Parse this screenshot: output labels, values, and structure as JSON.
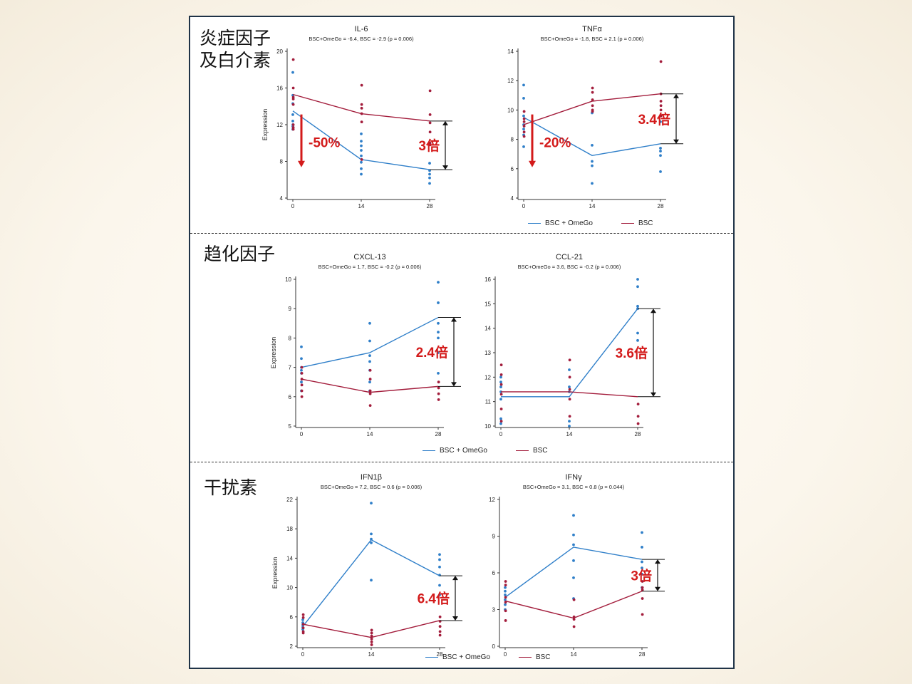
{
  "colors": {
    "blue": "#2f7fc9",
    "red": "#a31d3c",
    "callout": "#d31a1a"
  },
  "sections": [
    {
      "title_line1": "炎症因子",
      "title_line2": "及白介素"
    },
    {
      "title_line1": "趋化因子"
    },
    {
      "title_line1": "干扰素"
    }
  ],
  "legend": {
    "series_a": "BSC + OmeGo",
    "series_b": "BSC"
  },
  "chart_data": [
    {
      "type": "line",
      "title": "IL-6",
      "subtitle": "BSC+OmeGo = -6.4,  BSC = -2.9 (p = 0.006)",
      "ylabel": "Expression",
      "ylim": [
        4,
        20
      ],
      "yticks": [
        4,
        8,
        12,
        16,
        20
      ],
      "x": [
        0,
        14,
        28
      ],
      "series": [
        {
          "name": "BSC + OmeGo",
          "values": [
            13.5,
            8.2,
            7.1
          ],
          "points": [
            [
              0,
              17.7
            ],
            [
              0,
              15.2
            ],
            [
              0,
              14.3
            ],
            [
              0,
              13.1
            ],
            [
              0,
              12.4
            ],
            [
              0,
              12.0
            ],
            [
              0,
              11.8
            ],
            [
              0,
              11.5
            ],
            [
              14,
              11.0
            ],
            [
              14,
              10.2
            ],
            [
              14,
              9.7
            ],
            [
              14,
              9.2
            ],
            [
              14,
              8.6
            ],
            [
              14,
              7.9
            ],
            [
              14,
              7.2
            ],
            [
              14,
              6.6
            ],
            [
              28,
              7.8
            ],
            [
              28,
              7.0
            ],
            [
              28,
              6.6
            ],
            [
              28,
              6.2
            ],
            [
              28,
              5.6
            ]
          ]
        },
        {
          "name": "BSC",
          "values": [
            15.3,
            13.2,
            12.4
          ],
          "points": [
            [
              0,
              19.1
            ],
            [
              0,
              16.0
            ],
            [
              0,
              15.0
            ],
            [
              0,
              14.8
            ],
            [
              0,
              14.2
            ],
            [
              0,
              12.0
            ],
            [
              0,
              11.7
            ],
            [
              0,
              11.5
            ],
            [
              14,
              16.3
            ],
            [
              14,
              14.2
            ],
            [
              14,
              13.8
            ],
            [
              14,
              13.2
            ],
            [
              14,
              12.3
            ],
            [
              14,
              8.2
            ],
            [
              28,
              15.7
            ],
            [
              28,
              13.1
            ],
            [
              28,
              12.2
            ],
            [
              28,
              11.2
            ],
            [
              28,
              10.0
            ],
            [
              28,
              9.8
            ]
          ]
        }
      ],
      "callouts": [
        {
          "text": "-50%",
          "kind": "down"
        },
        {
          "text": "3倍",
          "kind": "range",
          "from": 12.4,
          "to": 7.1
        }
      ]
    },
    {
      "type": "line",
      "title": "TNFα",
      "subtitle": "BSC+OmeGo = -1.8,  BSC = 2.1 (p = 0.006)",
      "ylabel": "",
      "ylim": [
        4,
        14
      ],
      "yticks": [
        4,
        6,
        8,
        10,
        12,
        14
      ],
      "x": [
        0,
        14,
        28
      ],
      "series": [
        {
          "name": "BSC + OmeGo",
          "values": [
            9.5,
            6.9,
            7.7
          ],
          "points": [
            [
              0,
              11.7
            ],
            [
              0,
              10.8
            ],
            [
              0,
              9.6
            ],
            [
              0,
              9.0
            ],
            [
              0,
              8.7
            ],
            [
              0,
              8.3
            ],
            [
              0,
              7.5
            ],
            [
              14,
              7.6
            ],
            [
              14,
              6.5
            ],
            [
              14,
              6.2
            ],
            [
              14,
              5.0
            ],
            [
              14,
              9.8
            ],
            [
              28,
              9.2
            ],
            [
              28,
              7.4
            ],
            [
              28,
              7.2
            ],
            [
              28,
              6.9
            ],
            [
              28,
              5.8
            ]
          ]
        },
        {
          "name": "BSC",
          "values": [
            9.0,
            10.6,
            11.1
          ],
          "points": [
            [
              0,
              9.9
            ],
            [
              0,
              9.4
            ],
            [
              0,
              9.2
            ],
            [
              0,
              8.9
            ],
            [
              0,
              8.5
            ],
            [
              0,
              8.2
            ],
            [
              14,
              11.5
            ],
            [
              14,
              11.2
            ],
            [
              14,
              10.7
            ],
            [
              14,
              10.3
            ],
            [
              14,
              10.0
            ],
            [
              14,
              9.9
            ],
            [
              28,
              13.3
            ],
            [
              28,
              11.1
            ],
            [
              28,
              10.6
            ],
            [
              28,
              10.3
            ],
            [
              28,
              10.0
            ],
            [
              28,
              9.6
            ]
          ]
        }
      ],
      "callouts": [
        {
          "text": "-20%",
          "kind": "down"
        },
        {
          "text": "3.4倍",
          "kind": "range",
          "from": 11.1,
          "to": 7.7
        }
      ]
    },
    {
      "type": "line",
      "title": "CXCL-13",
      "subtitle": "BSC+OmeGo = 1.7,  BSC = -0.2 (p = 0.006)",
      "ylabel": "Expression",
      "ylim": [
        5,
        10
      ],
      "yticks": [
        5,
        6,
        7,
        8,
        9,
        10
      ],
      "x": [
        0,
        14,
        28
      ],
      "series": [
        {
          "name": "BSC + OmeGo",
          "values": [
            7.0,
            7.5,
            8.7
          ],
          "points": [
            [
              0,
              7.7
            ],
            [
              0,
              7.3
            ],
            [
              0,
              7.0
            ],
            [
              0,
              6.9
            ],
            [
              0,
              6.8
            ],
            [
              0,
              6.5
            ],
            [
              0,
              6.2
            ],
            [
              14,
              8.5
            ],
            [
              14,
              7.9
            ],
            [
              14,
              7.4
            ],
            [
              14,
              7.2
            ],
            [
              14,
              6.9
            ],
            [
              14,
              6.5
            ],
            [
              14,
              6.2
            ],
            [
              28,
              9.9
            ],
            [
              28,
              9.2
            ],
            [
              28,
              8.5
            ],
            [
              28,
              8.2
            ],
            [
              28,
              8.0
            ],
            [
              28,
              7.5
            ],
            [
              28,
              6.8
            ]
          ]
        },
        {
          "name": "BSC",
          "values": [
            6.6,
            6.15,
            6.35
          ],
          "points": [
            [
              0,
              7.0
            ],
            [
              0,
              6.8
            ],
            [
              0,
              6.6
            ],
            [
              0,
              6.4
            ],
            [
              0,
              6.2
            ],
            [
              0,
              6.0
            ],
            [
              14,
              6.9
            ],
            [
              14,
              6.6
            ],
            [
              14,
              6.2
            ],
            [
              14,
              6.1
            ],
            [
              14,
              5.7
            ],
            [
              28,
              6.5
            ],
            [
              28,
              6.3
            ],
            [
              28,
              6.1
            ],
            [
              28,
              5.9
            ]
          ]
        }
      ],
      "callouts": [
        {
          "text": "2.4倍",
          "kind": "range",
          "from": 8.7,
          "to": 6.35
        }
      ]
    },
    {
      "type": "line",
      "title": "CCL-21",
      "subtitle": "BSC+OmeGo = 3.6,  BSC = -0.2 (p = 0.006)",
      "ylabel": "",
      "ylim": [
        10,
        16
      ],
      "yticks": [
        10,
        11,
        12,
        13,
        14,
        15,
        16
      ],
      "x": [
        0,
        14,
        28
      ],
      "series": [
        {
          "name": "BSC + OmeGo",
          "values": [
            11.2,
            11.2,
            14.8
          ],
          "points": [
            [
              0,
              12.0
            ],
            [
              0,
              11.8
            ],
            [
              0,
              11.6
            ],
            [
              0,
              11.4
            ],
            [
              0,
              11.1
            ],
            [
              0,
              10.3
            ],
            [
              0,
              10.1
            ],
            [
              14,
              12.3
            ],
            [
              14,
              11.6
            ],
            [
              14,
              11.4
            ],
            [
              14,
              10.2
            ],
            [
              14,
              10.0
            ],
            [
              28,
              16.0
            ],
            [
              28,
              15.7
            ],
            [
              28,
              14.9
            ],
            [
              28,
              14.8
            ],
            [
              28,
              13.8
            ],
            [
              28,
              13.5
            ]
          ]
        },
        {
          "name": "BSC",
          "values": [
            11.4,
            11.4,
            11.2
          ],
          "points": [
            [
              0,
              12.5
            ],
            [
              0,
              12.1
            ],
            [
              0,
              11.7
            ],
            [
              0,
              11.3
            ],
            [
              0,
              10.7
            ],
            [
              0,
              10.2
            ],
            [
              14,
              12.7
            ],
            [
              14,
              12.0
            ],
            [
              14,
              11.5
            ],
            [
              14,
              11.1
            ],
            [
              14,
              10.4
            ],
            [
              28,
              10.9
            ],
            [
              28,
              10.4
            ],
            [
              28,
              10.1
            ]
          ]
        }
      ],
      "callouts": [
        {
          "text": "3.6倍",
          "kind": "range",
          "from": 14.8,
          "to": 11.2
        }
      ]
    },
    {
      "type": "line",
      "title": "IFN1β",
      "subtitle": "BSC+OmeGo = 7.2,  BSC = 0.6 (p = 0.006)",
      "ylabel": "Expression",
      "ylim": [
        2,
        22
      ],
      "yticks": [
        2,
        6,
        10,
        14,
        18,
        22
      ],
      "x": [
        0,
        14,
        28
      ],
      "series": [
        {
          "name": "BSC + OmeGo",
          "values": [
            4.7,
            16.5,
            11.6
          ],
          "points": [
            [
              0,
              5.6
            ],
            [
              0,
              5.2
            ],
            [
              0,
              4.9
            ],
            [
              0,
              4.6
            ],
            [
              0,
              4.3
            ],
            [
              14,
              21.5
            ],
            [
              14,
              17.3
            ],
            [
              14,
              16.6
            ],
            [
              14,
              16.1
            ],
            [
              14,
              11.0
            ],
            [
              28,
              14.5
            ],
            [
              28,
              13.8
            ],
            [
              28,
              12.8
            ],
            [
              28,
              11.7
            ],
            [
              28,
              10.3
            ],
            [
              28,
              9.0
            ]
          ]
        },
        {
          "name": "BSC",
          "values": [
            5.0,
            3.2,
            5.5
          ],
          "points": [
            [
              0,
              6.3
            ],
            [
              0,
              5.9
            ],
            [
              0,
              5.0
            ],
            [
              0,
              4.5
            ],
            [
              0,
              4.0
            ],
            [
              0,
              3.8
            ],
            [
              14,
              4.2
            ],
            [
              14,
              3.8
            ],
            [
              14,
              3.4
            ],
            [
              14,
              3.0
            ],
            [
              14,
              2.6
            ],
            [
              14,
              2.2
            ],
            [
              28,
              6.0
            ],
            [
              28,
              5.4
            ],
            [
              28,
              4.7
            ],
            [
              28,
              4.0
            ],
            [
              28,
              3.5
            ]
          ]
        }
      ],
      "callouts": [
        {
          "text": "6.4倍",
          "kind": "range",
          "from": 11.6,
          "to": 5.5
        }
      ]
    },
    {
      "type": "line",
      "title": "IFNγ",
      "subtitle": "BSC+OmeGo = 3.1,  BSC = 0.8 (p = 0.044)",
      "ylabel": "",
      "ylim": [
        0,
        12
      ],
      "yticks": [
        0,
        3,
        6,
        9,
        12
      ],
      "x": [
        0,
        14,
        28
      ],
      "series": [
        {
          "name": "BSC + OmeGo",
          "values": [
            4.0,
            8.1,
            7.1
          ],
          "points": [
            [
              0,
              4.8
            ],
            [
              0,
              4.5
            ],
            [
              0,
              4.2
            ],
            [
              0,
              3.8
            ],
            [
              0,
              3.4
            ],
            [
              0,
              3.0
            ],
            [
              14,
              10.7
            ],
            [
              14,
              9.1
            ],
            [
              14,
              8.3
            ],
            [
              14,
              7.0
            ],
            [
              14,
              5.6
            ],
            [
              14,
              3.9
            ],
            [
              28,
              9.3
            ],
            [
              28,
              8.1
            ],
            [
              28,
              6.9
            ],
            [
              28,
              6.4
            ],
            [
              28,
              5.9
            ],
            [
              28,
              4.8
            ]
          ]
        },
        {
          "name": "BSC",
          "values": [
            3.7,
            2.3,
            4.5
          ],
          "points": [
            [
              0,
              5.3
            ],
            [
              0,
              5.0
            ],
            [
              0,
              4.0
            ],
            [
              0,
              3.6
            ],
            [
              0,
              2.9
            ],
            [
              0,
              2.1
            ],
            [
              14,
              3.8
            ],
            [
              14,
              2.4
            ],
            [
              14,
              2.2
            ],
            [
              14,
              1.6
            ],
            [
              28,
              5.3
            ],
            [
              28,
              4.8
            ],
            [
              28,
              4.6
            ],
            [
              28,
              3.9
            ],
            [
              28,
              2.6
            ]
          ]
        }
      ],
      "callouts": [
        {
          "text": "3倍",
          "kind": "range",
          "from": 7.1,
          "to": 4.5
        }
      ]
    }
  ]
}
